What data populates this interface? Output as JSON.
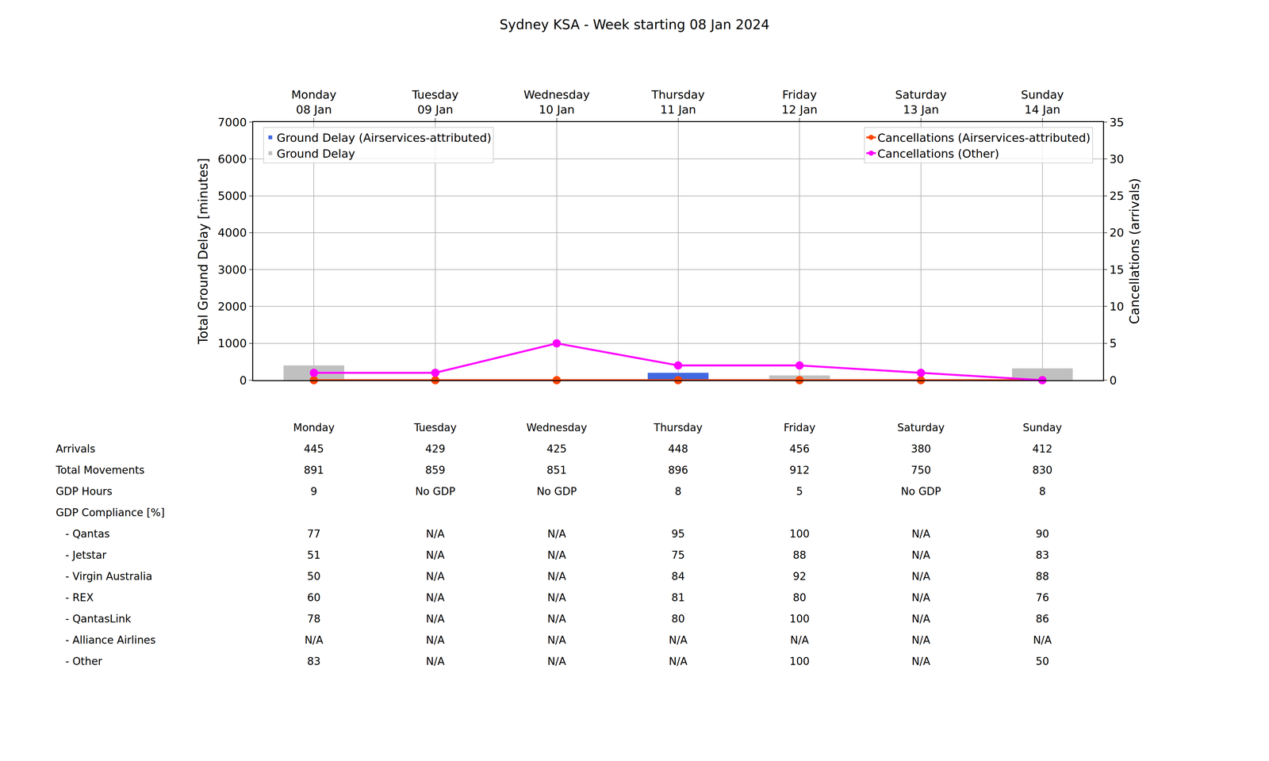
{
  "chart_data": {
    "type": "bar",
    "title": "Sydney KSA - Week starting 08 Jan 2024",
    "categories": [
      "Monday",
      "Tuesday",
      "Wednesday",
      "Thursday",
      "Friday",
      "Saturday",
      "Sunday"
    ],
    "category_dates": [
      "08 Jan",
      "09 Jan",
      "10 Jan",
      "11 Jan",
      "12 Jan",
      "13 Jan",
      "14 Jan"
    ],
    "series": [
      {
        "name": "Ground Delay (Airservices-attributed)",
        "type": "bar",
        "color": "#4169e1",
        "values": [
          0,
          0,
          0,
          200,
          0,
          0,
          0
        ]
      },
      {
        "name": "Ground Delay",
        "type": "bar",
        "color": "#c0c0c0",
        "values": [
          400,
          0,
          0,
          200,
          130,
          0,
          320
        ]
      },
      {
        "name": "Cancellations (Airservices-attributed)",
        "type": "line",
        "axis": "y2",
        "color": "#ff4500",
        "marker": "circle",
        "line_style": "solid",
        "values": [
          0,
          0,
          0,
          0,
          0,
          0,
          0
        ]
      },
      {
        "name": "Cancellations (Other)",
        "type": "line",
        "axis": "y2",
        "color": "#ff00ff",
        "marker": "circle",
        "line_style": "solid",
        "values": [
          1,
          1,
          5,
          2,
          2,
          1,
          0
        ]
      }
    ],
    "ylabel": "Total Ground Delay [minutes]",
    "y2label": "Cancellations (arrivals)",
    "ylim": [
      0,
      7000
    ],
    "yticks": [
      0,
      1000,
      2000,
      3000,
      4000,
      5000,
      6000,
      7000
    ],
    "y2lim": [
      0,
      35
    ],
    "y2ticks": [
      0,
      5,
      10,
      15,
      20,
      25,
      30,
      35
    ],
    "grid": true,
    "legend": "upper"
  },
  "table": {
    "columns": [
      "Monday",
      "Tuesday",
      "Wednesday",
      "Thursday",
      "Friday",
      "Saturday",
      "Sunday"
    ],
    "rows": [
      {
        "label": "Arrivals",
        "values": [
          445,
          429,
          425,
          448,
          456,
          380,
          412
        ]
      },
      {
        "label": "Total Movements",
        "values": [
          891,
          859,
          851,
          896,
          912,
          750,
          830
        ]
      },
      {
        "label": "GDP Hours",
        "values": [
          9,
          "No GDP",
          "No GDP",
          8,
          5,
          "No GDP",
          8
        ]
      },
      {
        "label": "GDP Compliance [%]",
        "rows": [
          {
            "label": "- Qantas",
            "values": [
              77,
              "N/A",
              "N/A",
              95,
              100,
              "N/A",
              90
            ]
          },
          {
            "label": "- Jetstar",
            "values": [
              51,
              "N/A",
              "N/A",
              75,
              88,
              "N/A",
              83
            ]
          },
          {
            "label": "- Virgin Australia",
            "values": [
              50,
              "N/A",
              "N/A",
              84,
              92,
              "N/A",
              88
            ]
          },
          {
            "label": "- REX",
            "values": [
              60,
              "N/A",
              "N/A",
              81,
              80,
              "N/A",
              76
            ]
          },
          {
            "label": "- QantasLink",
            "values": [
              78,
              "N/A",
              "N/A",
              80,
              100,
              "N/A",
              86
            ]
          },
          {
            "label": "- Alliance Airlines",
            "values": [
              "N/A",
              "N/A",
              "N/A",
              "N/A",
              "N/A",
              "N/A",
              "N/A"
            ]
          },
          {
            "label": "- Other",
            "values": [
              83,
              "N/A",
              "N/A",
              "N/A",
              100,
              "N/A",
              50
            ]
          }
        ]
      }
    ]
  }
}
